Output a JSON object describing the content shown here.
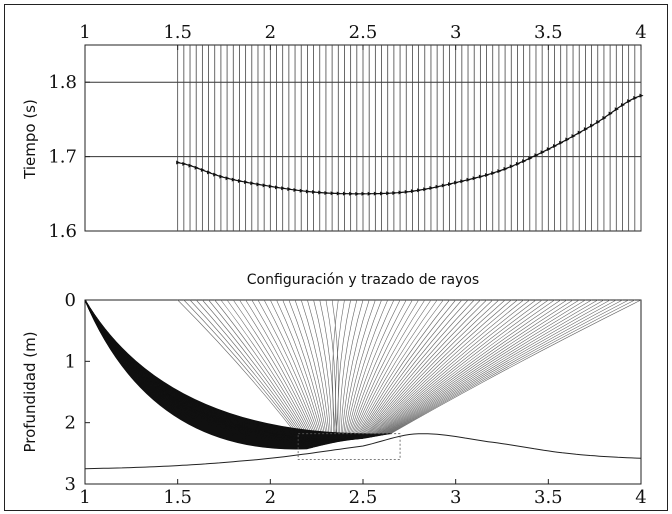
{
  "chart_data": [
    {
      "type": "line",
      "title": "",
      "xlabel": "",
      "ylabel": "Tiempo (s)",
      "xlim": [
        1,
        4
      ],
      "ylim": [
        1.6,
        1.85
      ],
      "x_ticks": [
        "1",
        "1.5",
        "2",
        "2.5",
        "3",
        "3.5",
        "4"
      ],
      "y_ticks": [
        "1.6",
        "1.7",
        "1.8"
      ],
      "y_gridlines": [
        1.7,
        1.8
      ],
      "receivers": {
        "x_start": 1.5,
        "x_end": 4.0,
        "count": 76
      },
      "series": [
        {
          "points": [
            [
              1.5,
              1.692
            ],
            [
              1.75,
              1.672
            ],
            [
              2.0,
              1.66
            ],
            [
              2.25,
              1.652
            ],
            [
              2.5,
              1.65
            ],
            [
              2.75,
              1.653
            ],
            [
              3.0,
              1.665
            ],
            [
              3.25,
              1.682
            ],
            [
              3.5,
              1.71
            ],
            [
              3.75,
              1.744
            ],
            [
              4.0,
              1.782
            ]
          ]
        }
      ]
    },
    {
      "type": "line",
      "title": "Configuración y trazado de rayos",
      "xlabel": "",
      "ylabel": "Profundidad (m)",
      "xlim": [
        1,
        4
      ],
      "ylim": [
        3,
        0
      ],
      "x_ticks": [
        "1",
        "1.5",
        "2",
        "2.5",
        "3",
        "3.5",
        "4"
      ],
      "y_ticks": [
        "0",
        "1",
        "2",
        "3"
      ],
      "source": {
        "x": 1.0,
        "y": 0.0
      },
      "receivers": {
        "x_start": 1.5,
        "x_end": 4.0,
        "count": 76
      },
      "reflector": [
        [
          1.0,
          2.75
        ],
        [
          1.5,
          2.7
        ],
        [
          2.0,
          2.58
        ],
        [
          2.5,
          2.38
        ],
        [
          2.8,
          2.18
        ],
        [
          3.2,
          2.32
        ],
        [
          3.6,
          2.5
        ],
        [
          4.0,
          2.58
        ]
      ],
      "reflection_zone": {
        "x_start": 2.15,
        "x_end": 2.7,
        "y_top": 2.18,
        "y_bottom": 2.6
      }
    }
  ]
}
